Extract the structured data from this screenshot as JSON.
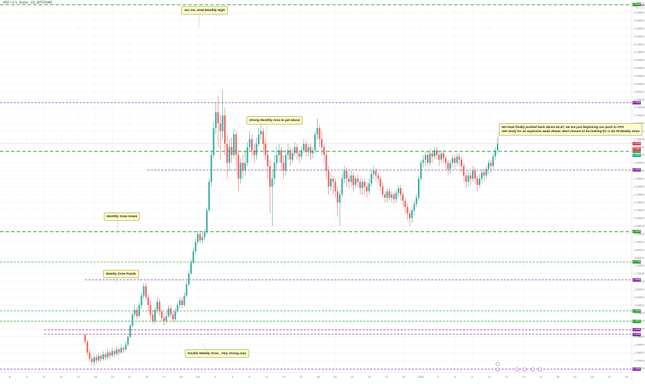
{
  "symbol": "XRP / U.S. Dollar, 1D, BITSTAMP",
  "currency": "USD",
  "colors": {
    "up": "#26a69a",
    "down": "#ef5350",
    "green_line": "#2e9e2e",
    "purple_line": "#8a2aa8",
    "last_price": "#e0334e",
    "grid": "#eeeeee"
  },
  "annotations": [
    {
      "id": "ath",
      "text": "Jan 1st, 2018 Monthly High"
    },
    {
      "id": "strong",
      "text": "Strong Monthly Area to get above"
    },
    {
      "id": "green",
      "text": "Monthly Zone Green"
    },
    {
      "id": "purple",
      "text": "Weekly Zone Purple"
    },
    {
      "id": "double",
      "text": "Double Weekly Zone , Very strong area"
    },
    {
      "id": "main",
      "line1": "We have finally pushed back above $2.47, we are just beginning our push to ATH",
      "line2": "Get ready for an explosive week ahead. Next closure to be looking for is $2.78 Weekly Zone"
    }
  ],
  "chart_data": {
    "type": "candlestick",
    "x_tick_labels": [
      "8",
      "9",
      "11",
      "13",
      "15",
      "18",
      "20",
      "22",
      "25",
      "27",
      "29",
      "Oct",
      "3",
      "5",
      "8",
      "11",
      "13",
      "15",
      "18",
      "20",
      "22",
      "25",
      "27",
      "29",
      "2025",
      "3",
      "6",
      "9",
      "11",
      "13",
      "15",
      "17",
      "20",
      "22",
      "24",
      "27",
      "29"
    ],
    "ylim": [
      1.08,
      3.43
    ],
    "price_axis": {
      "min": 1.1,
      "max": 3.4,
      "step": 0.05
    },
    "horizontal_levels": [
      {
        "price": 3.3999,
        "label": "3.3999",
        "color": "green",
        "style": "dash-long"
      },
      {
        "price": 2.7806,
        "label": "2.7806",
        "color": "purple",
        "style": "dash-short"
      },
      {
        "price": 2.4725,
        "label": "2.4725",
        "color": "green",
        "style": "dash-long"
      },
      {
        "price": 2.3539,
        "label": "2.3539",
        "color": "purple",
        "style": "dash-short"
      },
      {
        "price": 1.9649,
        "label": "1.9649",
        "color": "green",
        "style": "dash-long"
      },
      {
        "price": 1.7726,
        "label": "1.7726",
        "color": "green",
        "style": "dash-short"
      },
      {
        "price": 1.6598,
        "label": "1.6598",
        "color": "purple",
        "style": "dash-short"
      },
      {
        "price": 1.4641,
        "label": "1.4641",
        "color": "green",
        "style": "dash-short"
      },
      {
        "price": 1.3987,
        "label": "1.3987",
        "color": "green",
        "style": "dash-short"
      },
      {
        "price": 1.3434,
        "label": "1.3434",
        "color": "purple",
        "style": "dash-short"
      },
      {
        "price": 1.3158,
        "label": "1.3158",
        "color": "purple",
        "style": "dash-short"
      },
      {
        "price": 1.0954,
        "label": "1.0954",
        "color": "purple",
        "style": "dash-short"
      }
    ],
    "last_price": {
      "price": 2.5206,
      "label": "2.5206"
    },
    "other_price_labels": [
      {
        "price": 2.4857,
        "label": "2.4857",
        "color": "#e0334e"
      },
      {
        "price": 2.4491,
        "label": "2.4491",
        "color": "#26a69a"
      }
    ],
    "candles": [
      [
        1.31,
        1.27,
        1.32,
        1.25
      ],
      [
        1.27,
        1.2,
        1.28,
        1.18
      ],
      [
        1.2,
        1.16,
        1.22,
        1.14
      ],
      [
        1.16,
        1.14,
        1.18,
        1.12
      ],
      [
        1.14,
        1.17,
        1.19,
        1.12
      ],
      [
        1.17,
        1.15,
        1.19,
        1.13
      ],
      [
        1.15,
        1.18,
        1.2,
        1.14
      ],
      [
        1.18,
        1.16,
        1.19,
        1.14
      ],
      [
        1.16,
        1.19,
        1.21,
        1.15
      ],
      [
        1.19,
        1.17,
        1.2,
        1.15
      ],
      [
        1.17,
        1.2,
        1.22,
        1.16
      ],
      [
        1.2,
        1.18,
        1.21,
        1.16
      ],
      [
        1.18,
        1.21,
        1.23,
        1.17
      ],
      [
        1.21,
        1.19,
        1.22,
        1.17
      ],
      [
        1.19,
        1.22,
        1.24,
        1.18
      ],
      [
        1.22,
        1.2,
        1.23,
        1.18
      ],
      [
        1.2,
        1.23,
        1.25,
        1.19
      ],
      [
        1.23,
        1.22,
        1.24,
        1.2
      ],
      [
        1.22,
        1.25,
        1.27,
        1.21
      ],
      [
        1.25,
        1.3,
        1.31,
        1.24
      ],
      [
        1.3,
        1.37,
        1.38,
        1.29
      ],
      [
        1.37,
        1.44,
        1.45,
        1.36
      ],
      [
        1.44,
        1.47,
        1.5,
        1.42
      ],
      [
        1.47,
        1.43,
        1.49,
        1.41
      ],
      [
        1.43,
        1.5,
        1.52,
        1.42
      ],
      [
        1.5,
        1.56,
        1.58,
        1.48
      ],
      [
        1.56,
        1.62,
        1.64,
        1.54
      ],
      [
        1.62,
        1.55,
        1.64,
        1.53
      ],
      [
        1.55,
        1.5,
        1.57,
        1.46
      ],
      [
        1.5,
        1.44,
        1.53,
        1.41
      ],
      [
        1.44,
        1.4,
        1.47,
        1.38
      ],
      [
        1.4,
        1.47,
        1.49,
        1.38
      ],
      [
        1.47,
        1.52,
        1.55,
        1.45
      ],
      [
        1.52,
        1.46,
        1.54,
        1.43
      ],
      [
        1.46,
        1.42,
        1.48,
        1.4
      ],
      [
        1.42,
        1.4,
        1.45,
        1.37
      ],
      [
        1.4,
        1.43,
        1.46,
        1.38
      ],
      [
        1.43,
        1.48,
        1.5,
        1.42
      ],
      [
        1.48,
        1.44,
        1.5,
        1.42
      ],
      [
        1.44,
        1.41,
        1.46,
        1.39
      ],
      [
        1.41,
        1.46,
        1.48,
        1.4
      ],
      [
        1.46,
        1.5,
        1.52,
        1.45
      ],
      [
        1.5,
        1.53,
        1.55,
        1.48
      ],
      [
        1.53,
        1.5,
        1.55,
        1.48
      ],
      [
        1.5,
        1.56,
        1.58,
        1.49
      ],
      [
        1.56,
        1.63,
        1.65,
        1.55
      ],
      [
        1.63,
        1.7,
        1.72,
        1.62
      ],
      [
        1.7,
        1.77,
        1.79,
        1.69
      ],
      [
        1.77,
        1.84,
        1.86,
        1.76
      ],
      [
        1.84,
        1.9,
        1.92,
        1.82
      ],
      [
        1.9,
        1.95,
        1.97,
        1.88
      ],
      [
        1.95,
        1.91,
        1.97,
        1.89
      ],
      [
        1.91,
        1.93,
        1.96,
        1.89
      ],
      [
        1.93,
        1.96,
        1.98,
        1.91
      ],
      [
        1.96,
        2.1,
        2.12,
        1.95
      ],
      [
        2.1,
        2.28,
        2.3,
        2.09
      ],
      [
        2.28,
        2.45,
        2.48,
        2.25
      ],
      [
        2.45,
        2.62,
        2.66,
        2.43
      ],
      [
        2.62,
        2.72,
        2.78,
        2.58
      ],
      [
        2.72,
        2.65,
        2.82,
        2.5
      ],
      [
        2.65,
        2.6,
        2.7,
        2.42
      ],
      [
        2.6,
        2.7,
        2.86,
        2.55
      ],
      [
        2.7,
        2.52,
        2.75,
        2.45
      ],
      [
        2.52,
        2.4,
        2.58,
        2.3
      ],
      [
        2.4,
        2.5,
        2.55,
        2.35
      ],
      [
        2.5,
        2.45,
        2.56,
        2.4
      ],
      [
        2.45,
        2.58,
        2.62,
        2.43
      ],
      [
        2.58,
        2.45,
        2.6,
        2.35
      ],
      [
        2.45,
        2.3,
        2.48,
        2.22
      ],
      [
        2.3,
        2.4,
        2.43,
        2.27
      ],
      [
        2.4,
        2.35,
        2.45,
        2.3
      ],
      [
        2.35,
        2.4,
        2.48,
        2.32
      ],
      [
        2.4,
        2.5,
        2.53,
        2.38
      ],
      [
        2.5,
        2.55,
        2.6,
        2.47
      ],
      [
        2.55,
        2.48,
        2.58,
        2.44
      ],
      [
        2.48,
        2.45,
        2.52,
        2.4
      ],
      [
        2.45,
        2.52,
        2.56,
        2.42
      ],
      [
        2.52,
        2.58,
        2.62,
        2.5
      ],
      [
        2.58,
        2.6,
        2.65,
        2.55
      ],
      [
        2.6,
        2.52,
        2.62,
        2.48
      ],
      [
        2.52,
        2.45,
        2.55,
        2.42
      ],
      [
        2.45,
        2.38,
        2.48,
        2.3
      ],
      [
        2.38,
        2.25,
        2.42,
        2.08
      ],
      [
        2.25,
        2.3,
        2.35,
        2.0
      ],
      [
        2.3,
        2.4,
        2.45,
        2.26
      ],
      [
        2.4,
        2.45,
        2.5,
        2.36
      ],
      [
        2.45,
        2.48,
        2.52,
        2.4
      ],
      [
        2.48,
        2.4,
        2.5,
        2.35
      ],
      [
        2.4,
        2.35,
        2.45,
        2.3
      ],
      [
        2.35,
        2.45,
        2.48,
        2.32
      ],
      [
        2.45,
        2.48,
        2.52,
        2.42
      ],
      [
        2.48,
        2.42,
        2.5,
        2.38
      ],
      [
        2.42,
        2.46,
        2.49,
        2.4
      ],
      [
        2.46,
        2.5,
        2.53,
        2.44
      ],
      [
        2.5,
        2.46,
        2.52,
        2.42
      ],
      [
        2.46,
        2.44,
        2.48,
        2.4
      ],
      [
        2.44,
        2.48,
        2.5,
        2.42
      ],
      [
        2.48,
        2.52,
        2.55,
        2.46
      ],
      [
        2.52,
        2.47,
        2.54,
        2.44
      ],
      [
        2.47,
        2.5,
        2.52,
        2.44
      ],
      [
        2.5,
        2.46,
        2.52,
        2.42
      ],
      [
        2.46,
        2.48,
        2.5,
        2.43
      ],
      [
        2.48,
        2.58,
        2.6,
        2.46
      ],
      [
        2.58,
        2.62,
        2.68,
        2.55
      ],
      [
        2.62,
        2.55,
        2.64,
        2.5
      ],
      [
        2.55,
        2.5,
        2.6,
        2.45
      ],
      [
        2.5,
        2.45,
        2.52,
        2.4
      ],
      [
        2.45,
        2.35,
        2.48,
        2.3
      ],
      [
        2.35,
        2.25,
        2.38,
        2.2
      ],
      [
        2.25,
        2.3,
        2.34,
        2.22
      ],
      [
        2.3,
        2.28,
        2.32,
        2.2
      ],
      [
        2.28,
        2.22,
        2.3,
        2.18
      ],
      [
        2.22,
        2.15,
        2.25,
        2.06
      ],
      [
        2.15,
        2.2,
        2.23,
        2.0
      ],
      [
        2.2,
        2.3,
        2.33,
        2.18
      ],
      [
        2.3,
        2.35,
        2.38,
        2.27
      ],
      [
        2.35,
        2.3,
        2.37,
        2.25
      ],
      [
        2.3,
        2.28,
        2.33,
        2.24
      ],
      [
        2.28,
        2.32,
        2.35,
        2.25
      ],
      [
        2.32,
        2.26,
        2.34,
        2.22
      ],
      [
        2.26,
        2.3,
        2.32,
        2.24
      ],
      [
        2.3,
        2.28,
        2.33,
        2.25
      ],
      [
        2.28,
        2.24,
        2.3,
        2.2
      ],
      [
        2.24,
        2.28,
        2.3,
        2.2
      ],
      [
        2.28,
        2.25,
        2.3,
        2.2
      ],
      [
        2.25,
        2.22,
        2.28,
        2.18
      ],
      [
        2.22,
        2.27,
        2.3,
        2.2
      ],
      [
        2.27,
        2.33,
        2.36,
        2.25
      ],
      [
        2.33,
        2.35,
        2.38,
        2.3
      ],
      [
        2.35,
        2.32,
        2.37,
        2.28
      ],
      [
        2.32,
        2.3,
        2.34,
        2.27
      ],
      [
        2.3,
        2.25,
        2.32,
        2.22
      ],
      [
        2.25,
        2.2,
        2.28,
        2.18
      ],
      [
        2.2,
        2.18,
        2.22,
        2.15
      ],
      [
        2.18,
        2.22,
        2.24,
        2.15
      ],
      [
        2.22,
        2.18,
        2.24,
        2.16
      ],
      [
        2.18,
        2.2,
        2.22,
        2.15
      ],
      [
        2.2,
        2.17,
        2.22,
        2.14
      ],
      [
        2.17,
        2.21,
        2.23,
        2.15
      ],
      [
        2.21,
        2.24,
        2.26,
        2.18
      ],
      [
        2.24,
        2.2,
        2.26,
        2.16
      ],
      [
        2.2,
        2.16,
        2.22,
        2.12
      ],
      [
        2.16,
        2.12,
        2.18,
        2.08
      ],
      [
        2.12,
        2.08,
        2.14,
        2.04
      ],
      [
        2.08,
        2.05,
        2.1,
        2.0
      ],
      [
        2.05,
        2.1,
        2.12,
        2.02
      ],
      [
        2.1,
        2.14,
        2.16,
        2.07
      ],
      [
        2.14,
        2.18,
        2.2,
        2.12
      ],
      [
        2.18,
        2.3,
        2.32,
        2.16
      ],
      [
        2.3,
        2.4,
        2.42,
        2.28
      ],
      [
        2.4,
        2.42,
        2.45,
        2.37
      ],
      [
        2.42,
        2.45,
        2.47,
        2.38
      ],
      [
        2.45,
        2.4,
        2.47,
        2.37
      ],
      [
        2.4,
        2.46,
        2.49,
        2.38
      ],
      [
        2.46,
        2.44,
        2.48,
        2.4
      ],
      [
        2.44,
        2.48,
        2.5,
        2.42
      ],
      [
        2.48,
        2.45,
        2.5,
        2.42
      ],
      [
        2.45,
        2.42,
        2.47,
        2.38
      ],
      [
        2.42,
        2.46,
        2.48,
        2.4
      ],
      [
        2.46,
        2.43,
        2.48,
        2.4
      ],
      [
        2.43,
        2.4,
        2.45,
        2.36
      ],
      [
        2.4,
        2.36,
        2.42,
        2.32
      ],
      [
        2.36,
        2.4,
        2.42,
        2.33
      ],
      [
        2.4,
        2.43,
        2.45,
        2.37
      ],
      [
        2.43,
        2.4,
        2.45,
        2.36
      ],
      [
        2.4,
        2.44,
        2.46,
        2.38
      ],
      [
        2.44,
        2.42,
        2.46,
        2.38
      ],
      [
        2.42,
        2.38,
        2.44,
        2.34
      ],
      [
        2.38,
        2.32,
        2.4,
        2.28
      ],
      [
        2.32,
        2.28,
        2.34,
        2.24
      ],
      [
        2.28,
        2.32,
        2.35,
        2.25
      ],
      [
        2.32,
        2.3,
        2.34,
        2.26
      ],
      [
        2.3,
        2.35,
        2.38,
        2.28
      ],
      [
        2.35,
        2.3,
        2.37,
        2.27
      ],
      [
        2.3,
        2.26,
        2.32,
        2.22
      ],
      [
        2.26,
        2.3,
        2.33,
        2.24
      ],
      [
        2.3,
        2.34,
        2.36,
        2.27
      ],
      [
        2.34,
        2.32,
        2.36,
        2.28
      ],
      [
        2.32,
        2.36,
        2.38,
        2.3
      ],
      [
        2.36,
        2.4,
        2.42,
        2.33
      ],
      [
        2.4,
        2.38,
        2.42,
        2.34
      ],
      [
        2.38,
        2.44,
        2.46,
        2.36
      ],
      [
        2.44,
        2.48,
        2.5,
        2.42
      ],
      [
        2.48,
        2.52,
        2.56,
        2.46
      ]
    ]
  }
}
